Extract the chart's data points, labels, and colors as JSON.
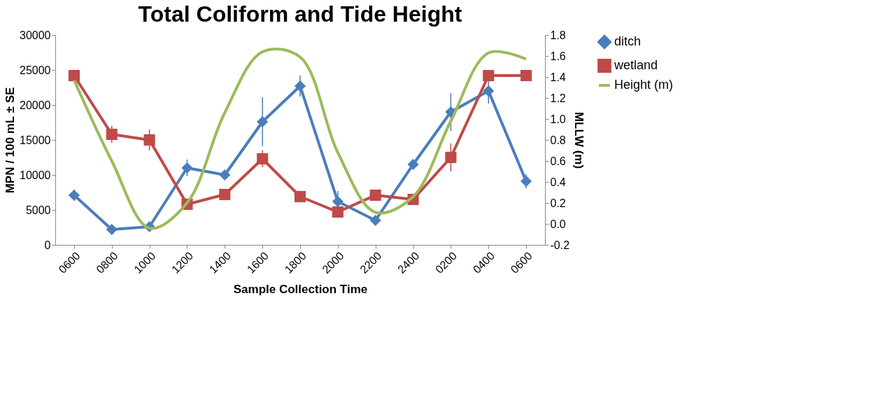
{
  "chart_data": {
    "type": "line",
    "title": "Total Coliform and Tide Height",
    "xlabel": "Sample Collection Time",
    "ylabel": "MPN / 100 mL ± SE",
    "y2label": "MLLW (m)",
    "categories": [
      "0600",
      "0800",
      "1000",
      "1200",
      "1400",
      "1600",
      "1800",
      "2000",
      "2200",
      "2400",
      "0200",
      "0400",
      "0600"
    ],
    "series": [
      {
        "name": "ditch",
        "color": "#4a7ebb",
        "marker": "diamond",
        "values": [
          7100,
          2200,
          2600,
          11000,
          10000,
          17600,
          22700,
          6200,
          3500,
          11500,
          19000,
          22000,
          9100
        ],
        "errors": [
          800,
          null,
          null,
          1200,
          null,
          3500,
          1500,
          1500,
          null,
          null,
          2700,
          1800,
          1000
        ]
      },
      {
        "name": "wetland",
        "color": "#be4b48",
        "marker": "square",
        "values": [
          24200,
          15800,
          15000,
          5800,
          7200,
          12300,
          6900,
          4700,
          7100,
          6500,
          12500,
          24200,
          24200
        ],
        "errors": [
          null,
          1200,
          1500,
          null,
          null,
          1200,
          null,
          null,
          null,
          null,
          2000,
          null,
          null
        ]
      },
      {
        "name": "Height (m)",
        "color": "#9bbb59",
        "marker": "none",
        "axis": "y2",
        "values": [
          1.37,
          0.6,
          -0.04,
          0.2,
          1.06,
          1.64,
          1.59,
          0.68,
          0.11,
          0.26,
          0.98,
          1.63,
          1.57
        ]
      }
    ],
    "ylim": [
      0,
      30000
    ],
    "yticks": [
      0,
      5000,
      10000,
      15000,
      20000,
      25000,
      30000
    ],
    "y2lim": [
      -0.2,
      1.8
    ],
    "y2ticks": [
      {
        "value": -0.2,
        "label": "-0.2"
      },
      {
        "value": 0,
        "label": "0.0"
      },
      {
        "value": 0.2,
        "label": "0.2"
      },
      {
        "value": 0.4,
        "label": "0.4"
      },
      {
        "value": 0.6,
        "label": "0.6"
      },
      {
        "value": 0.8,
        "label": "0.8"
      },
      {
        "value": 1.0,
        "label": "1.0"
      },
      {
        "value": 1.2,
        "label": "1.2"
      },
      {
        "value": 1.4,
        "label": "1.4"
      },
      {
        "value": 1.6,
        "label": "1.6"
      },
      {
        "value": 1.8,
        "label": "1.8"
      }
    ],
    "grid": false,
    "legend": "right",
    "line_style": "solid"
  }
}
